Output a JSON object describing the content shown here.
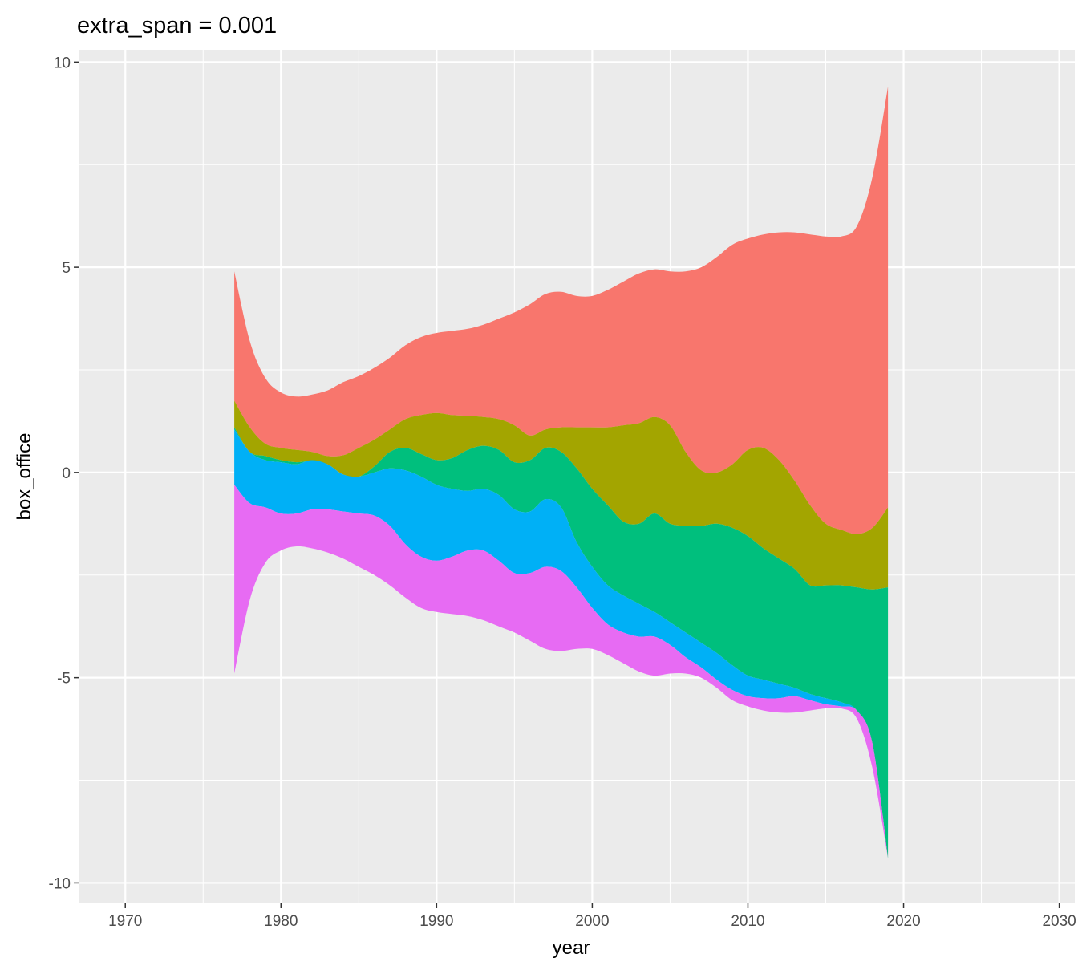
{
  "chart_data": {
    "type": "area",
    "subtype": "streamgraph",
    "title": "extra_span = 0.001",
    "xlabel": "year",
    "ylabel": "box_office",
    "xlim": [
      1967,
      2031
    ],
    "ylim": [
      -10.5,
      10.3
    ],
    "x_ticks": [
      1970,
      1980,
      1990,
      2000,
      2010,
      2020,
      2030
    ],
    "y_ticks": [
      10,
      5,
      0,
      -5,
      -10
    ],
    "y_tick_labels": [
      "10",
      "5",
      "0",
      "-5",
      "-10"
    ],
    "grid": true,
    "legend": "none",
    "x": [
      1977,
      1978,
      1979,
      1980,
      1981,
      1982,
      1983,
      1984,
      1985,
      1986,
      1987,
      1988,
      1989,
      1990,
      1991,
      1992,
      1993,
      1994,
      1995,
      1996,
      1997,
      1998,
      1999,
      2000,
      2001,
      2002,
      2003,
      2004,
      2005,
      2006,
      2007,
      2008,
      2009,
      2010,
      2011,
      2012,
      2013,
      2014,
      2015,
      2016,
      2017,
      2018,
      2019
    ],
    "boundaries": [
      [
        4.9,
        3.2,
        2.3,
        1.95,
        1.85,
        1.9,
        2.0,
        2.2,
        2.35,
        2.55,
        2.8,
        3.1,
        3.3,
        3.4,
        3.45,
        3.5,
        3.6,
        3.75,
        3.9,
        4.1,
        4.35,
        4.4,
        4.3,
        4.3,
        4.45,
        4.65,
        4.85,
        4.95,
        4.9,
        4.9,
        5.0,
        5.25,
        5.55,
        5.7,
        5.8,
        5.85,
        5.85,
        5.8,
        5.75,
        5.75,
        6.0,
        7.2,
        9.4
      ],
      [
        1.75,
        1.1,
        0.7,
        0.6,
        0.55,
        0.5,
        0.4,
        0.42,
        0.6,
        0.8,
        1.05,
        1.3,
        1.4,
        1.45,
        1.4,
        1.38,
        1.35,
        1.3,
        1.15,
        0.9,
        1.05,
        1.1,
        1.1,
        1.1,
        1.1,
        1.15,
        1.2,
        1.35,
        1.15,
        0.5,
        0.05,
        0.0,
        0.2,
        0.55,
        0.6,
        0.3,
        -0.2,
        -0.8,
        -1.25,
        -1.4,
        -1.5,
        -1.35,
        -0.85
      ],
      [
        1.1,
        0.5,
        0.4,
        0.3,
        0.25,
        0.28,
        0.2,
        -0.05,
        -0.1,
        0.15,
        0.5,
        0.6,
        0.45,
        0.3,
        0.35,
        0.55,
        0.65,
        0.55,
        0.25,
        0.3,
        0.6,
        0.5,
        0.1,
        -0.4,
        -0.8,
        -1.2,
        -1.25,
        -1.0,
        -1.25,
        -1.3,
        -1.3,
        -1.25,
        -1.35,
        -1.55,
        -1.85,
        -2.1,
        -2.35,
        -2.75,
        -2.75,
        -2.75,
        -2.8,
        -2.85,
        -2.8
      ],
      [
        1.05,
        0.5,
        0.3,
        0.25,
        0.2,
        0.3,
        0.2,
        -0.05,
        -0.1,
        0.0,
        0.1,
        0.05,
        -0.1,
        -0.3,
        -0.4,
        -0.45,
        -0.4,
        -0.55,
        -0.9,
        -0.95,
        -0.65,
        -0.85,
        -1.7,
        -2.3,
        -2.75,
        -3.0,
        -3.2,
        -3.4,
        -3.65,
        -3.9,
        -4.15,
        -4.4,
        -4.7,
        -4.95,
        -5.05,
        -5.15,
        -5.25,
        -5.4,
        -5.5,
        -5.6,
        -5.8,
        -6.6,
        -9.4
      ],
      [
        -0.3,
        -0.75,
        -0.85,
        -1.0,
        -1.0,
        -0.9,
        -0.9,
        -0.95,
        -1.0,
        -1.05,
        -1.3,
        -1.75,
        -2.05,
        -2.15,
        -2.05,
        -1.9,
        -1.9,
        -2.15,
        -2.45,
        -2.45,
        -2.3,
        -2.4,
        -2.8,
        -3.3,
        -3.7,
        -3.9,
        -4.0,
        -4.0,
        -4.2,
        -4.5,
        -4.75,
        -5.05,
        -5.3,
        -5.45,
        -5.5,
        -5.5,
        -5.45,
        -5.55,
        -5.65,
        -5.7,
        -5.8,
        -6.6,
        -9.4
      ],
      [
        -4.9,
        -3.1,
        -2.2,
        -1.9,
        -1.8,
        -1.85,
        -1.95,
        -2.1,
        -2.3,
        -2.5,
        -2.75,
        -3.05,
        -3.3,
        -3.4,
        -3.45,
        -3.5,
        -3.6,
        -3.75,
        -3.9,
        -4.1,
        -4.3,
        -4.35,
        -4.3,
        -4.3,
        -4.45,
        -4.65,
        -4.85,
        -4.95,
        -4.9,
        -4.9,
        -5.0,
        -5.25,
        -5.55,
        -5.7,
        -5.8,
        -5.85,
        -5.85,
        -5.8,
        -5.75,
        -5.75,
        -6.0,
        -7.2,
        -9.4
      ]
    ],
    "series_colors": [
      "#F8766D",
      "#A3A500",
      "#00BF7D",
      "#00B0F6",
      "#E76BF3"
    ]
  }
}
